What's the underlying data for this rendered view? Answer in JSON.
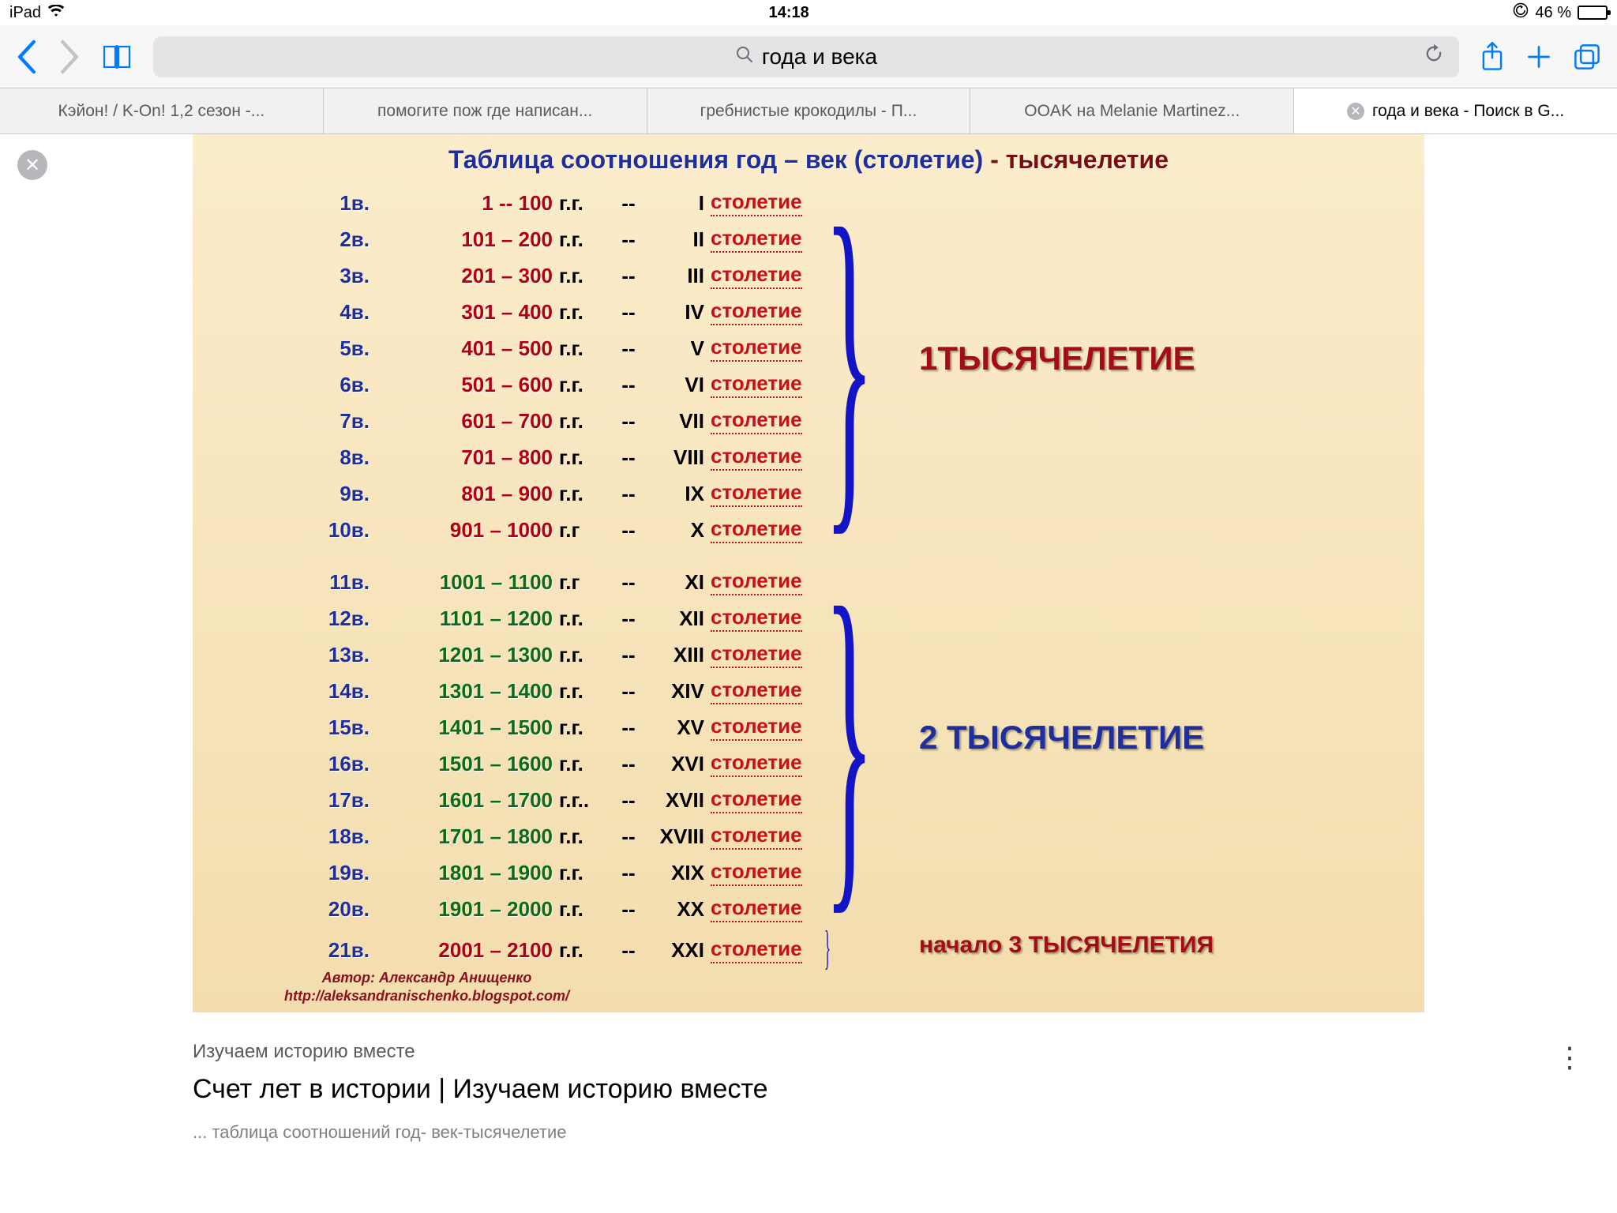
{
  "status": {
    "device": "iPad",
    "time": "14:18",
    "battery_pct": "46 %",
    "battery_fill_pct": 46
  },
  "toolbar": {
    "query": "года и века"
  },
  "tabs": [
    {
      "label": "Кэйон! / K-On! 1,2 сезон -...",
      "active": false,
      "close": false
    },
    {
      "label": "помогите пож где написан...",
      "active": false,
      "close": false
    },
    {
      "label": "гребнистые крокодилы - П...",
      "active": false,
      "close": false
    },
    {
      "label": "OOAK на Melanie Martinez...",
      "active": false,
      "close": false
    },
    {
      "label": "года и века - Поиск в G...",
      "active": true,
      "close": true
    }
  ],
  "figure": {
    "title_a": "Таблица  соотношения  год – век (столетие)",
    "title_b": "  -  тысячелетие",
    "title_fontsize": 32,
    "body_fontsize": 26,
    "colors": {
      "vek": "#1f2e9c",
      "range_g1": "#b00010",
      "range_g2": "#0d6b16",
      "range_g3": "#b00010",
      "roman": "#000000",
      "stoletie": "#c81018",
      "brace": "#1414c7",
      "mill_g1": "#a30d14",
      "mill_g2": "#1f2e9c",
      "mill_g3": "#a30d14"
    },
    "stoletie_word": "столетие",
    "gg": "г.г.",
    "gg2": "г.г",
    "dash": "--",
    "groups": [
      {
        "rows": [
          {
            "vek": "1в.",
            "range": "1 -- 100",
            "gg": "г.г.",
            "roman": "I"
          },
          {
            "vek": "2в.",
            "range": "101 – 200",
            "gg": "г.г.",
            "roman": "II"
          },
          {
            "vek": "3в.",
            "range": "201 – 300",
            "gg": "г.г.",
            "roman": "III"
          },
          {
            "vek": "4в.",
            "range": "301 – 400",
            "gg": "г.г.",
            "roman": "IV"
          },
          {
            "vek": "5в.",
            "range": "401 – 500",
            "gg": "г.г.",
            "roman": "V"
          },
          {
            "vek": "6в.",
            "range": "501 – 600",
            "gg": "г.г.",
            "roman": "VI"
          },
          {
            "vek": "7в.",
            "range": "601 – 700",
            "gg": "г.г.",
            "roman": "VII"
          },
          {
            "vek": "8в.",
            "range": "701 – 800",
            "gg": "г.г.",
            "roman": "VIII"
          },
          {
            "vek": "9в.",
            "range": "801 – 900",
            "gg": "г.г.",
            "roman": "IX"
          },
          {
            "vek": "10в.",
            "range": "901 – 1000",
            "gg": "г.г",
            "roman": "X"
          }
        ],
        "mill": "1ТЫСЯЧЕЛЕТИЕ",
        "mill_fontsize": 42,
        "mill_color": "#a30d14"
      },
      {
        "rows": [
          {
            "vek": "11в.",
            "range": "1001 – 1100",
            "gg": "г.г",
            "roman": "XI"
          },
          {
            "vek": "12в.",
            "range": "1101 – 1200",
            "gg": "г.г.",
            "roman": "XII"
          },
          {
            "vek": "13в.",
            "range": "1201 – 1300",
            "gg": "г.г.",
            "roman": "XIII"
          },
          {
            "vek": "14в.",
            "range": "1301 – 1400",
            "gg": "г.г.",
            "roman": "XIV"
          },
          {
            "vek": "15в.",
            "range": "1401 – 1500",
            "gg": "г.г.",
            "roman": "XV"
          },
          {
            "vek": "16в.",
            "range": "1501 – 1600",
            "gg": "г.г.",
            "roman": "XVI"
          },
          {
            "vek": "17в.",
            "range": "1601 – 1700",
            "gg": "г.г..",
            "roman": "XVII"
          },
          {
            "vek": "18в.",
            "range": "1701 – 1800",
            "gg": "г.г.",
            "roman": "XVIII"
          },
          {
            "vek": "19в.",
            "range": "1801 – 1900",
            "gg": "г.г.",
            "roman": "XIX"
          },
          {
            "vek": "20в.",
            "range": "1901 – 2000",
            "gg": "г.г.",
            "roman": "XX"
          }
        ],
        "mill": "2 ТЫСЯЧЕЛЕТИЕ",
        "mill_fontsize": 42,
        "mill_color": "#1f2e9c"
      },
      {
        "rows": [
          {
            "vek": "21в.",
            "range": "2001 – 2100",
            "gg": "г.г.",
            "roman": "XXI"
          }
        ],
        "mill": "начало 3 ТЫСЯЧЕЛЕТИЯ",
        "mill_fontsize": 30,
        "mill_color": "#a30d14"
      }
    ],
    "author_line1": "Автор: Александр Анищенко",
    "author_line2": "http://aleksandranischenko.blogspot.com/"
  },
  "caption": {
    "site": "Изучаем историю вместе",
    "title": "Счет лет в истории | Изучаем историю вместе",
    "sub": "... таблица соотношений год- век-тысячелетие"
  }
}
